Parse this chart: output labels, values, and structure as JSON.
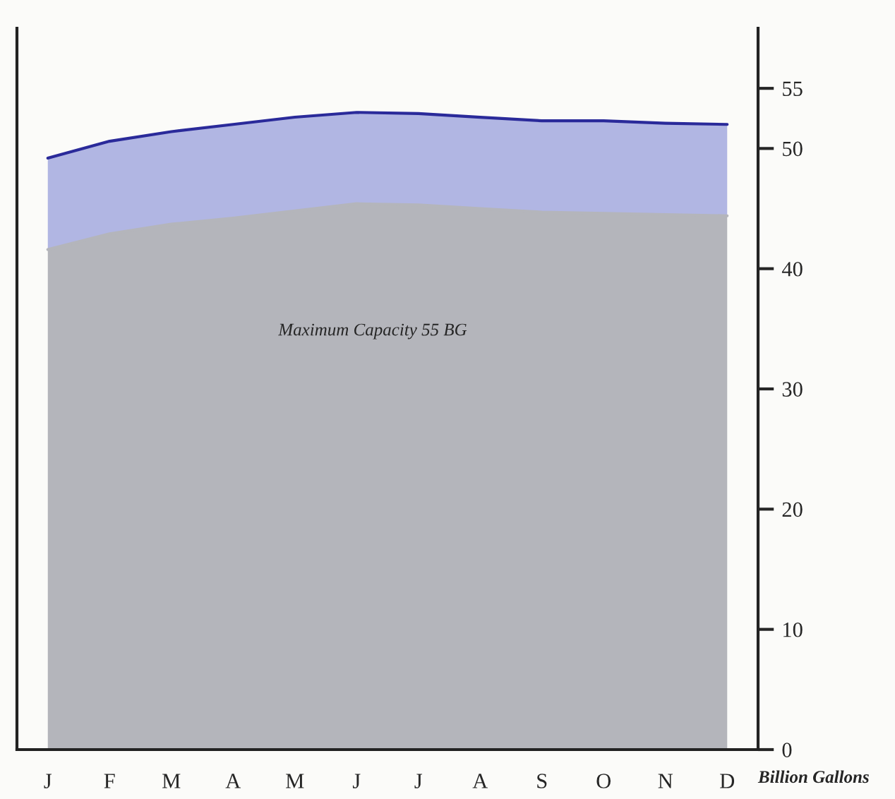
{
  "chart_data": {
    "type": "area",
    "stacked": true,
    "categories": [
      "J",
      "F",
      "M",
      "A",
      "M",
      "J",
      "J",
      "A",
      "S",
      "O",
      "N",
      "D"
    ],
    "series": [
      {
        "color": "#b4b5bb",
        "values": [
          41.6,
          42.9,
          43.7,
          44.2,
          44.8,
          45.4,
          45.3,
          45.0,
          44.7,
          44.6,
          44.5,
          44.4
        ]
      },
      {
        "color": "#b1b6e3",
        "values": [
          7.6,
          7.7,
          7.7,
          7.8,
          7.8,
          7.6,
          7.6,
          7.6,
          7.6,
          7.7,
          7.6,
          7.6
        ]
      }
    ],
    "ylabel": "Billion Gallons",
    "ylim": [
      0,
      60
    ],
    "yticks": [
      0,
      10,
      20,
      30,
      40,
      50,
      55
    ],
    "annotations": [
      "Maximum Capacity 55 BG"
    ],
    "grid": false,
    "legend": false
  }
}
